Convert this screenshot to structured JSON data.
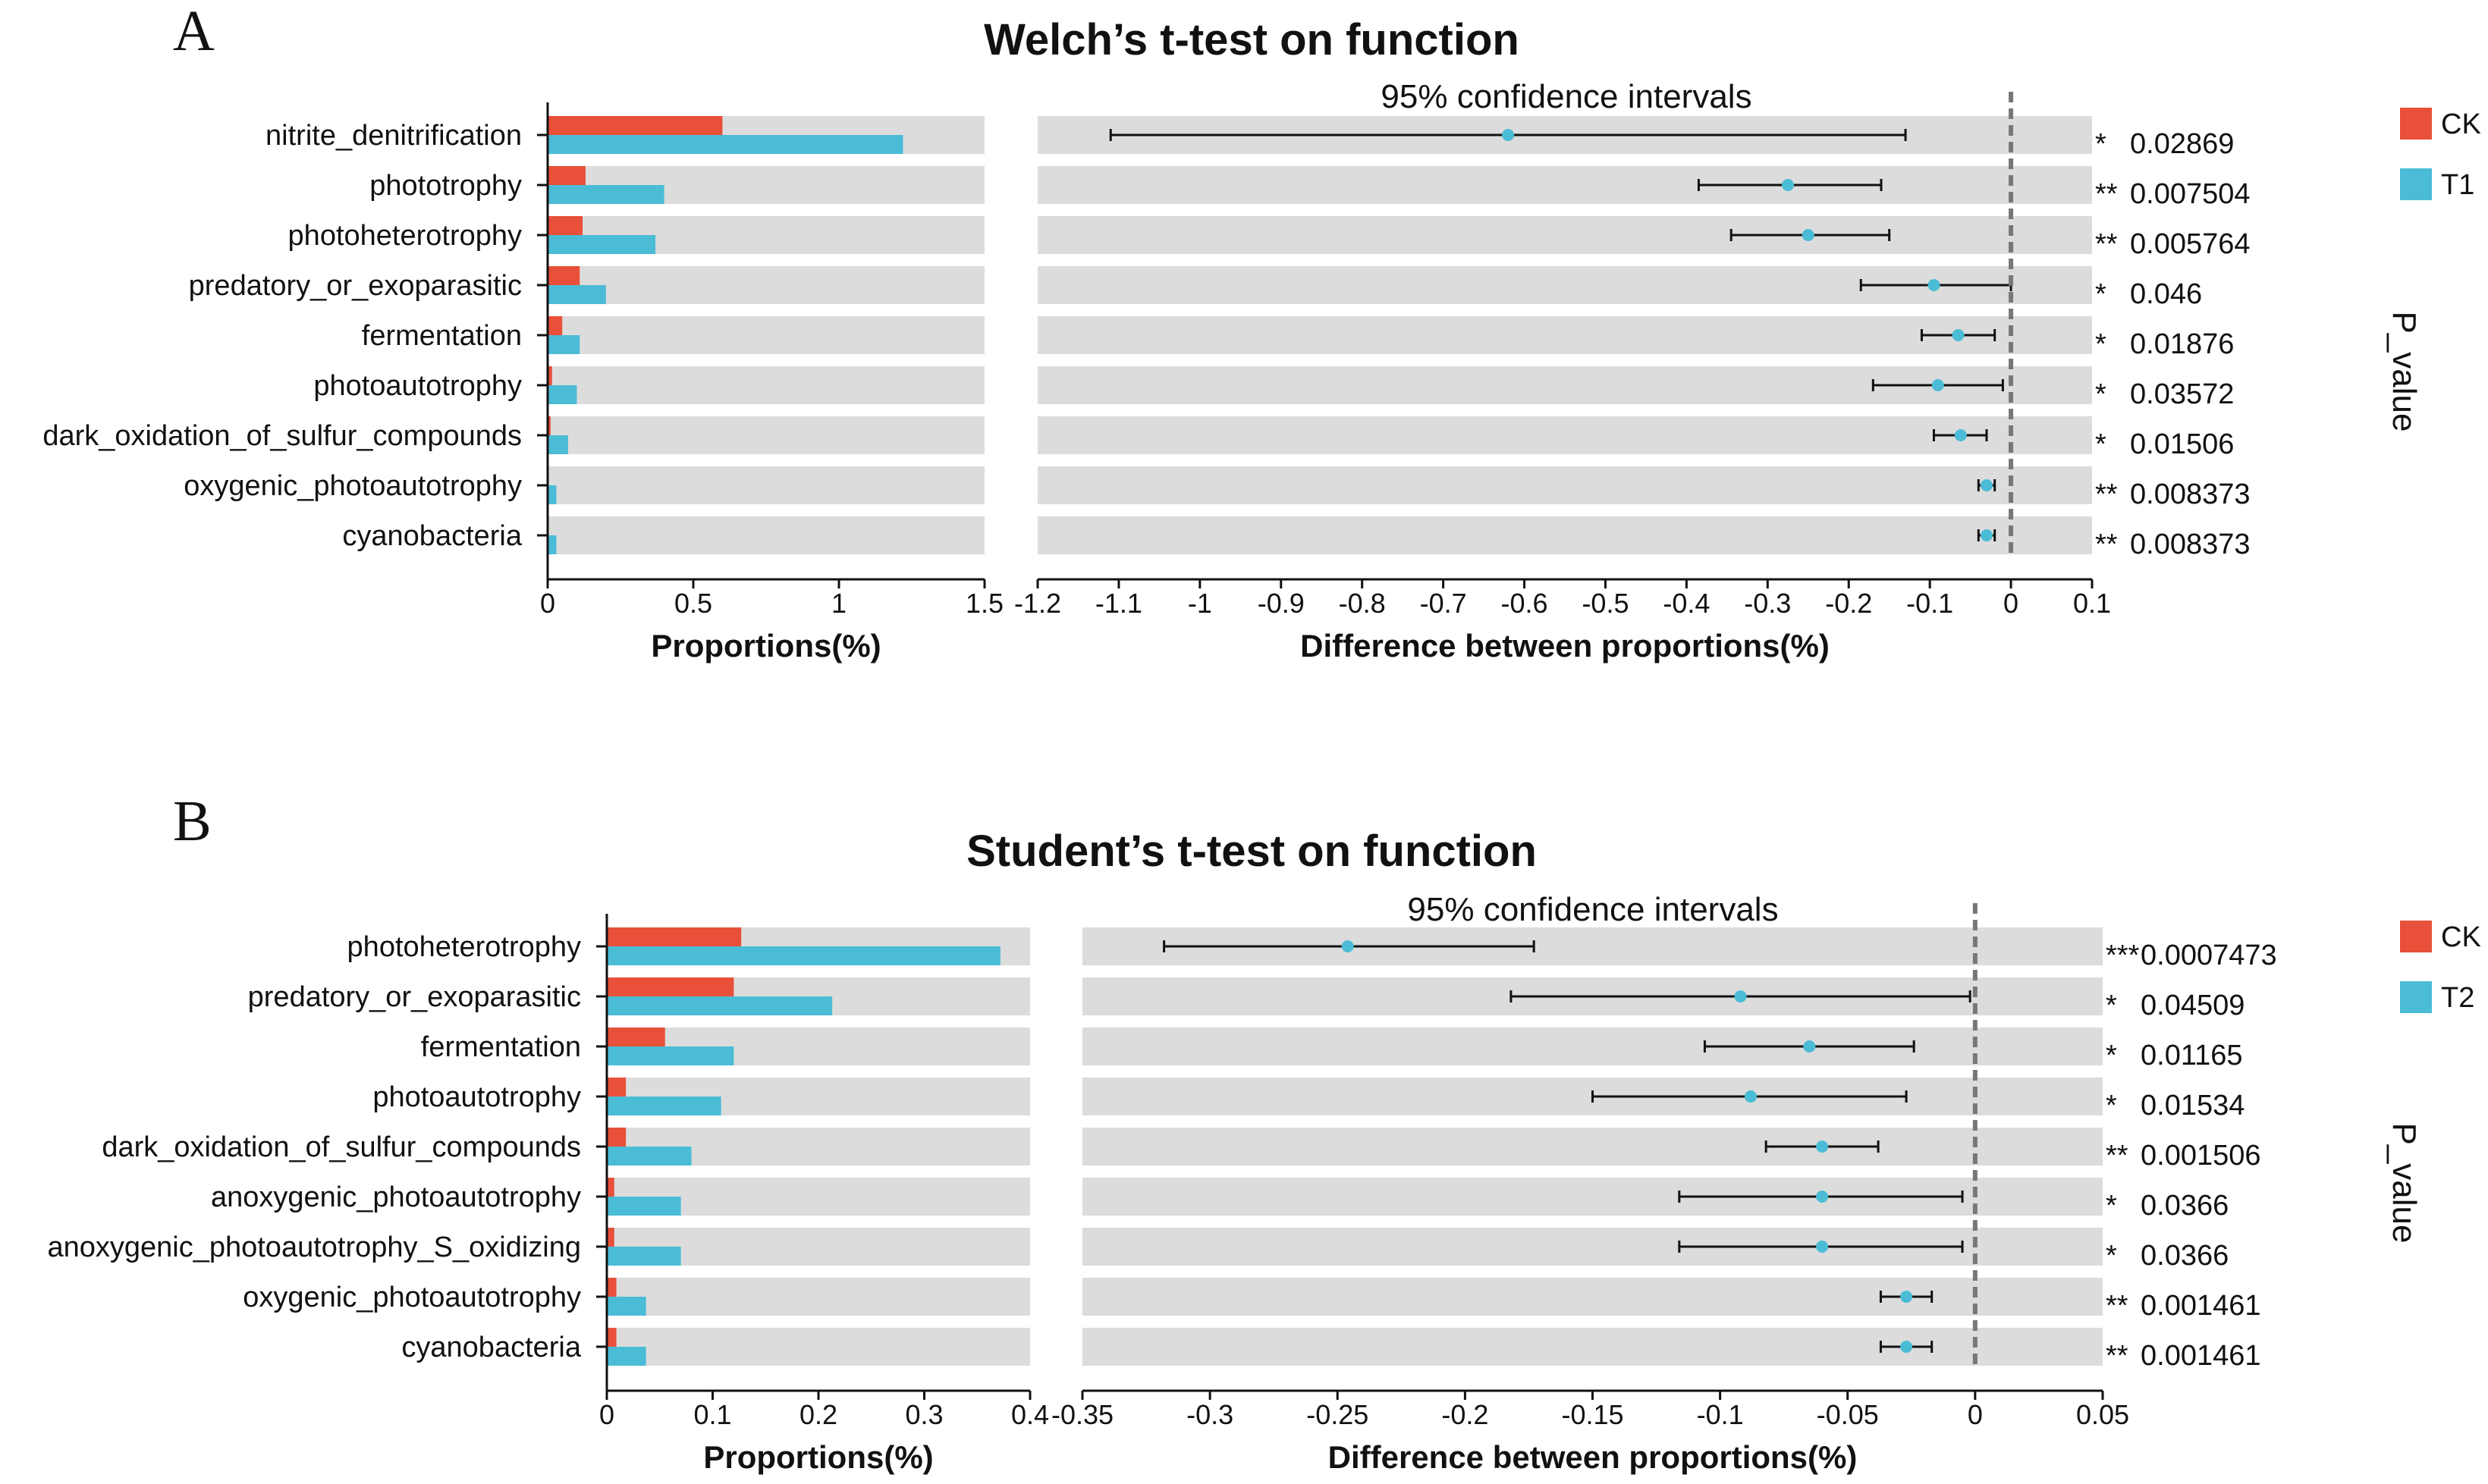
{
  "chart_data": [
    {
      "type": "bar",
      "panel_letter": "A",
      "title": "Welch’s t-test on function",
      "ci_title": "95% confidence intervals",
      "p_value_title": "P_value",
      "categories": [
        "nitrite_denitrification",
        "phototrophy",
        "photoheterotrophy",
        "predatory_or_exoparasitic",
        "fermentation",
        "photoautotrophy",
        "dark_oxidation_of_sulfur_compounds",
        "oxygenic_photoautotrophy",
        "cyanobacteria"
      ],
      "series": [
        {
          "name": "CK",
          "color": "#e8503a",
          "values": [
            0.6,
            0.13,
            0.12,
            0.11,
            0.05,
            0.015,
            0.01,
            0.003,
            0.003
          ]
        },
        {
          "name": "T1",
          "color": "#4bbcd6",
          "values": [
            1.22,
            0.4,
            0.37,
            0.2,
            0.11,
            0.1,
            0.07,
            0.03,
            0.03
          ]
        }
      ],
      "proportions_axis": {
        "label": "Proportions(%)",
        "range": [
          0,
          1.5
        ],
        "ticks": [
          0,
          0.5,
          1,
          1.5
        ],
        "tick_labels": [
          "0",
          "0.5",
          "1",
          "1.5"
        ]
      },
      "difference_axis": {
        "label": "Difference between proportions(%)",
        "range": [
          -1.2,
          0.1
        ],
        "ticks": [
          -1.2,
          -1.1,
          -1,
          -0.9,
          -0.8,
          -0.7,
          -0.6,
          -0.5,
          -0.4,
          -0.3,
          -0.2,
          -0.1,
          0,
          0.1
        ],
        "tick_labels": [
          "-1.2",
          "-1.1",
          "-1",
          "-0.9",
          "-0.8",
          "-0.7",
          "-0.6",
          "-0.5",
          "-0.4",
          "-0.3",
          "-0.2",
          "-0.1",
          "0",
          "0.1"
        ]
      },
      "differences": [
        {
          "mean": -0.62,
          "low": -1.11,
          "high": -0.13
        },
        {
          "mean": -0.275,
          "low": -0.385,
          "high": -0.16
        },
        {
          "mean": -0.25,
          "low": -0.345,
          "high": -0.15
        },
        {
          "mean": -0.095,
          "low": -0.185,
          "high": 0.0
        },
        {
          "mean": -0.065,
          "low": -0.11,
          "high": -0.02
        },
        {
          "mean": -0.09,
          "low": -0.17,
          "high": -0.01
        },
        {
          "mean": -0.062,
          "low": -0.095,
          "high": -0.03
        },
        {
          "mean": -0.03,
          "low": -0.04,
          "high": -0.02
        },
        {
          "mean": -0.03,
          "low": -0.04,
          "high": -0.02
        }
      ],
      "significance": [
        "*",
        "**",
        "**",
        "*",
        "*",
        "*",
        "*",
        "**",
        "**"
      ],
      "p_values": [
        "0.02869",
        "0.007504",
        "0.005764",
        "0.046",
        "0.01876",
        "0.03572",
        "0.01506",
        "0.008373",
        "0.008373"
      ],
      "legend": [
        "CK",
        "T1"
      ],
      "legend_placement": "top-right"
    },
    {
      "type": "bar",
      "panel_letter": "B",
      "title": "Student’s t-test on function",
      "ci_title": "95% confidence intervals",
      "p_value_title": "P_value",
      "categories": [
        "photoheterotrophy",
        "predatory_or_exoparasitic",
        "fermentation",
        "photoautotrophy",
        "dark_oxidation_of_sulfur_compounds",
        "anoxygenic_photoautotrophy",
        "anoxygenic_photoautotrophy_S_oxidizing",
        "oxygenic_photoautotrophy",
        "cyanobacteria"
      ],
      "series": [
        {
          "name": "CK",
          "color": "#e8503a",
          "values": [
            0.127,
            0.12,
            0.055,
            0.018,
            0.018,
            0.007,
            0.007,
            0.009,
            0.009
          ]
        },
        {
          "name": "T2",
          "color": "#4bbcd6",
          "values": [
            0.372,
            0.213,
            0.12,
            0.108,
            0.08,
            0.07,
            0.07,
            0.037,
            0.037
          ]
        }
      ],
      "proportions_axis": {
        "label": "Proportions(%)",
        "range": [
          0,
          0.4
        ],
        "ticks": [
          0,
          0.1,
          0.2,
          0.3,
          0.4
        ],
        "tick_labels": [
          "0",
          "0.1",
          "0.2",
          "0.3",
          "0.4"
        ]
      },
      "difference_axis": {
        "label": "Difference between proportions(%)",
        "range": [
          -0.35,
          0.05
        ],
        "ticks": [
          -0.35,
          -0.3,
          -0.25,
          -0.2,
          -0.15,
          -0.1,
          -0.05,
          0,
          0.05
        ],
        "tick_labels": [
          "-0.35",
          "-0.3",
          "-0.25",
          "-0.2",
          "-0.15",
          "-0.1",
          "-0.05",
          "0",
          "0.05"
        ]
      },
      "differences": [
        {
          "mean": -0.246,
          "low": -0.318,
          "high": -0.173
        },
        {
          "mean": -0.092,
          "low": -0.182,
          "high": -0.002
        },
        {
          "mean": -0.065,
          "low": -0.106,
          "high": -0.024
        },
        {
          "mean": -0.088,
          "low": -0.15,
          "high": -0.027
        },
        {
          "mean": -0.06,
          "low": -0.082,
          "high": -0.038
        },
        {
          "mean": -0.06,
          "low": -0.116,
          "high": -0.005
        },
        {
          "mean": -0.06,
          "low": -0.116,
          "high": -0.005
        },
        {
          "mean": -0.027,
          "low": -0.037,
          "high": -0.017
        },
        {
          "mean": -0.027,
          "low": -0.037,
          "high": -0.017
        }
      ],
      "significance": [
        "***",
        "*",
        "*",
        "*",
        "**",
        "*",
        "*",
        "**",
        "**"
      ],
      "p_values": [
        "0.0007473",
        "0.04509",
        "0.01165",
        "0.01534",
        "0.001506",
        "0.0366",
        "0.0366",
        "0.001461",
        "0.001461"
      ],
      "legend": [
        "CK",
        "T2"
      ],
      "legend_placement": "top-right"
    }
  ]
}
